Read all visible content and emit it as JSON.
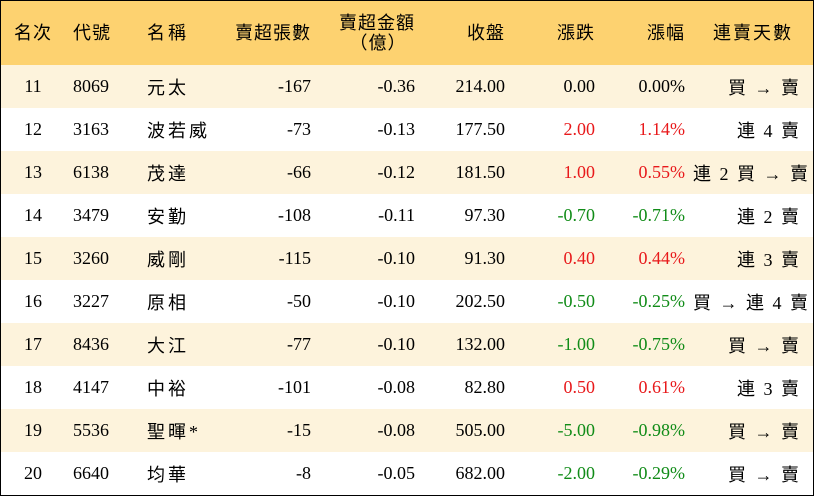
{
  "headers": {
    "rank": "名次",
    "code": "代號",
    "name": "名稱",
    "net_sell_lots": "賣超張數",
    "net_sell_amount_line1": "賣超金額",
    "net_sell_amount_line2": "（億）",
    "close": "收盤",
    "change": "漲跌",
    "change_pct": "漲幅",
    "streak": "連賣天數"
  },
  "colors": {
    "header_bg": "#fdd270",
    "stripe_bg": "#fdf3dc",
    "up": "#e8191b",
    "down": "#118c18"
  },
  "rows": [
    {
      "rank": "11",
      "code": "8069",
      "name": "元太",
      "lots": "-167",
      "amount": "-0.36",
      "close": "214.00",
      "change": "0.00",
      "pct": "0.00%",
      "dir": "zero",
      "streak": "買 → 賣"
    },
    {
      "rank": "12",
      "code": "3163",
      "name": "波若威",
      "lots": "-73",
      "amount": "-0.13",
      "close": "177.50",
      "change": "2.00",
      "pct": "1.14%",
      "dir": "pos",
      "streak": "連 4 賣"
    },
    {
      "rank": "13",
      "code": "6138",
      "name": "茂達",
      "lots": "-66",
      "amount": "-0.12",
      "close": "181.50",
      "change": "1.00",
      "pct": "0.55%",
      "dir": "pos",
      "streak": "連 2 買 → 賣"
    },
    {
      "rank": "14",
      "code": "3479",
      "name": "安勤",
      "lots": "-108",
      "amount": "-0.11",
      "close": "97.30",
      "change": "-0.70",
      "pct": "-0.71%",
      "dir": "neg",
      "streak": "連 2 賣"
    },
    {
      "rank": "15",
      "code": "3260",
      "name": "威剛",
      "lots": "-115",
      "amount": "-0.10",
      "close": "91.30",
      "change": "0.40",
      "pct": "0.44%",
      "dir": "pos",
      "streak": "連 3 賣"
    },
    {
      "rank": "16",
      "code": "3227",
      "name": "原相",
      "lots": "-50",
      "amount": "-0.10",
      "close": "202.50",
      "change": "-0.50",
      "pct": "-0.25%",
      "dir": "neg",
      "streak": "買 → 連 4 賣"
    },
    {
      "rank": "17",
      "code": "8436",
      "name": "大江",
      "lots": "-77",
      "amount": "-0.10",
      "close": "132.00",
      "change": "-1.00",
      "pct": "-0.75%",
      "dir": "neg",
      "streak": "買 → 賣"
    },
    {
      "rank": "18",
      "code": "4147",
      "name": "中裕",
      "lots": "-101",
      "amount": "-0.08",
      "close": "82.80",
      "change": "0.50",
      "pct": "0.61%",
      "dir": "pos",
      "streak": "連 3 賣"
    },
    {
      "rank": "19",
      "code": "5536",
      "name": "聖暉*",
      "lots": "-15",
      "amount": "-0.08",
      "close": "505.00",
      "change": "-5.00",
      "pct": "-0.98%",
      "dir": "neg",
      "streak": "買 → 賣"
    },
    {
      "rank": "20",
      "code": "6640",
      "name": "均華",
      "lots": "-8",
      "amount": "-0.05",
      "close": "682.00",
      "change": "-2.00",
      "pct": "-0.29%",
      "dir": "neg",
      "streak": "買 → 賣"
    }
  ]
}
